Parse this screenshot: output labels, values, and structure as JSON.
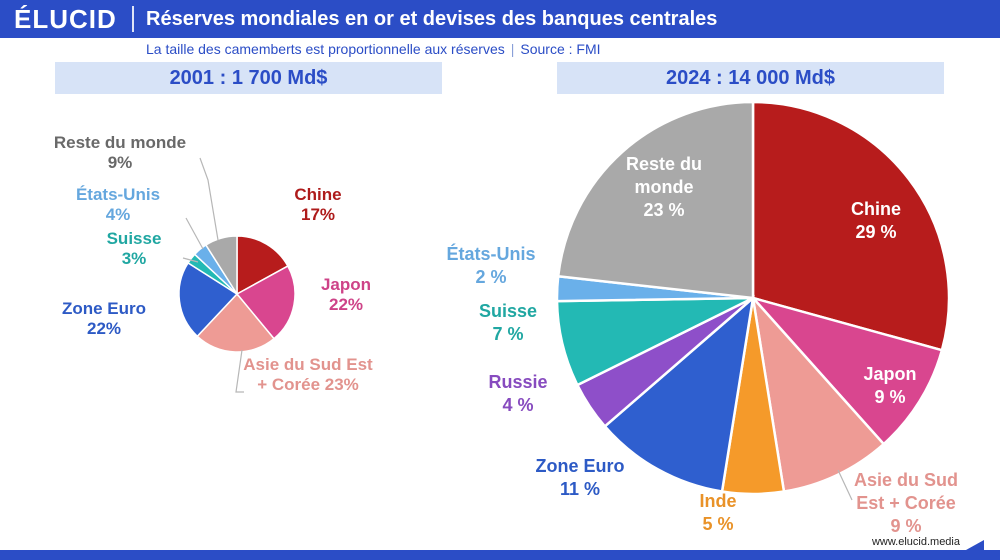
{
  "header": {
    "logo": "ÉLUCID",
    "title": "Réserves mondiales en or et devises des banques centrales",
    "subtitle": "La taille des camemberts est proportionnelle aux réserves",
    "source": "Source : FMI"
  },
  "footer": {
    "site": "www.elucid.media"
  },
  "chart_data": [
    {
      "type": "pie",
      "title": "2001 : 1 700 Md$",
      "total": 1700,
      "unit": "Md$",
      "slices": [
        {
          "name": "Chine",
          "value": 17,
          "label": "17%",
          "color": "#b71c1c"
        },
        {
          "name": "Japon",
          "value": 22,
          "label": "22%",
          "color": "#d9468f"
        },
        {
          "name": "Asie du Sud Est + Corée",
          "value": 23,
          "label": "23%",
          "color": "#ee9b95"
        },
        {
          "name": "Zone Euro",
          "value": 22,
          "label": "22%",
          "color": "#2f5fcf"
        },
        {
          "name": "Suisse",
          "value": 3,
          "label": "3%",
          "color": "#23b9b4"
        },
        {
          "name": "États-Unis",
          "value": 4,
          "label": "4%",
          "color": "#6ab0ea"
        },
        {
          "name": "Reste du monde",
          "value": 9,
          "label": "9%",
          "color": "#a9a9a9"
        }
      ]
    },
    {
      "type": "pie",
      "title": "2024 : 14 000 Md$",
      "total": 14000,
      "unit": "Md$",
      "slices": [
        {
          "name": "Chine",
          "value": 29,
          "label": "29 %",
          "color": "#b71c1c"
        },
        {
          "name": "Japon",
          "value": 9,
          "label": "9 %",
          "color": "#d9468f"
        },
        {
          "name": "Asie du Sud Est + Corée",
          "value": 9,
          "label": "9 %",
          "color": "#ee9b95"
        },
        {
          "name": "Inde",
          "value": 5,
          "label": "5 %",
          "color": "#f59a2a"
        },
        {
          "name": "Zone Euro",
          "value": 11,
          "label": "11 %",
          "color": "#2f5fcf"
        },
        {
          "name": "Russie",
          "value": 4,
          "label": "4 %",
          "color": "#8e4fc9"
        },
        {
          "name": "Suisse",
          "value": 7,
          "label": "7 %",
          "color": "#23b9b4"
        },
        {
          "name": "États-Unis",
          "value": 2,
          "label": "2 %",
          "color": "#6ab0ea"
        },
        {
          "name": "Reste du monde",
          "value": 23,
          "label": "23 %",
          "color": "#a9a9a9"
        }
      ]
    }
  ]
}
